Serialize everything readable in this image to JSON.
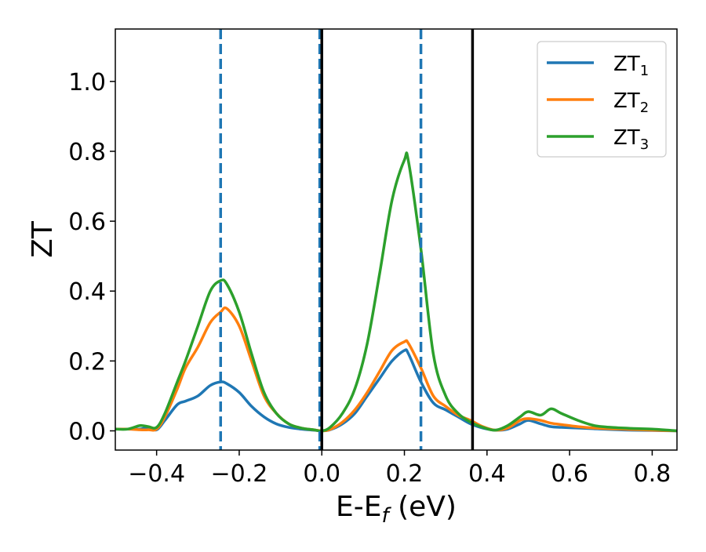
{
  "chart_data": {
    "type": "line",
    "xlabel": "E-E",
    "xlabel_sub": "f",
    "xlabel_unit": " (eV)",
    "ylabel": "ZT",
    "xlim": [
      -0.5,
      0.86
    ],
    "ylim": [
      -0.055,
      1.15
    ],
    "xticks": [
      -0.4,
      -0.2,
      0.0,
      0.2,
      0.4,
      0.6,
      0.8
    ],
    "xtick_labels": [
      "−0.4",
      "−0.2",
      "0.0",
      "0.2",
      "0.4",
      "0.6",
      "0.8"
    ],
    "yticks": [
      0.0,
      0.2,
      0.4,
      0.6,
      0.8,
      1.0
    ],
    "ytick_labels": [
      "0.0",
      "0.2",
      "0.4",
      "0.6",
      "0.8",
      "1.0"
    ],
    "grid": false,
    "legend_position": "top-right",
    "vlines": [
      {
        "x": -0.245,
        "style": "dashed",
        "color": "#1f77b4"
      },
      {
        "x": -0.005,
        "style": "dashed",
        "color": "#1f77b4"
      },
      {
        "x": 0.24,
        "style": "dashed",
        "color": "#1f77b4"
      },
      {
        "x": 0.0,
        "style": "solid",
        "color": "#000000"
      },
      {
        "x": 0.365,
        "style": "solid",
        "color": "#000000"
      }
    ],
    "x": [
      -0.5,
      -0.47,
      -0.44,
      -0.42,
      -0.4,
      -0.38,
      -0.35,
      -0.33,
      -0.3,
      -0.27,
      -0.245,
      -0.23,
      -0.2,
      -0.17,
      -0.14,
      -0.11,
      -0.08,
      -0.05,
      -0.02,
      0.0,
      0.02,
      0.05,
      0.08,
      0.11,
      0.14,
      0.17,
      0.2,
      0.21,
      0.24,
      0.27,
      0.3,
      0.33,
      0.36,
      0.39,
      0.42,
      0.45,
      0.48,
      0.5,
      0.53,
      0.555,
      0.58,
      0.62,
      0.66,
      0.7,
      0.75,
      0.8,
      0.86
    ],
    "series": [
      {
        "name": "ZT",
        "name_sub": "1",
        "color": "#1f77b4",
        "values": [
          0.005,
          0.005,
          0.005,
          0.01,
          0.003,
          0.03,
          0.075,
          0.085,
          0.1,
          0.13,
          0.14,
          0.135,
          0.11,
          0.07,
          0.04,
          0.02,
          0.01,
          0.005,
          0.002,
          0.0,
          0.003,
          0.02,
          0.05,
          0.1,
          0.15,
          0.2,
          0.23,
          0.22,
          0.14,
          0.08,
          0.06,
          0.04,
          0.02,
          0.008,
          0.002,
          0.005,
          0.02,
          0.03,
          0.02,
          0.012,
          0.01,
          0.008,
          0.006,
          0.004,
          0.002,
          0.001,
          0.0
        ]
      },
      {
        "name": "ZT",
        "name_sub": "2",
        "color": "#ff7f0e",
        "values": [
          0.005,
          0.005,
          0.003,
          0.003,
          0.005,
          0.04,
          0.12,
          0.18,
          0.24,
          0.31,
          0.34,
          0.35,
          0.3,
          0.2,
          0.1,
          0.05,
          0.02,
          0.008,
          0.003,
          0.0,
          0.004,
          0.025,
          0.06,
          0.11,
          0.17,
          0.23,
          0.255,
          0.25,
          0.18,
          0.1,
          0.07,
          0.045,
          0.03,
          0.012,
          0.002,
          0.008,
          0.03,
          0.035,
          0.03,
          0.022,
          0.018,
          0.012,
          0.008,
          0.006,
          0.004,
          0.002,
          0.0
        ]
      },
      {
        "name": "ZT",
        "name_sub": "3",
        "color": "#2ca02c",
        "values": [
          0.005,
          0.005,
          0.015,
          0.012,
          0.01,
          0.05,
          0.14,
          0.2,
          0.3,
          0.4,
          0.43,
          0.42,
          0.34,
          0.22,
          0.11,
          0.05,
          0.02,
          0.008,
          0.003,
          0.0,
          0.01,
          0.05,
          0.12,
          0.25,
          0.45,
          0.66,
          0.775,
          0.77,
          0.52,
          0.22,
          0.1,
          0.05,
          0.025,
          0.01,
          0.002,
          0.015,
          0.04,
          0.055,
          0.045,
          0.063,
          0.05,
          0.03,
          0.015,
          0.01,
          0.007,
          0.005,
          0.0
        ]
      }
    ]
  }
}
